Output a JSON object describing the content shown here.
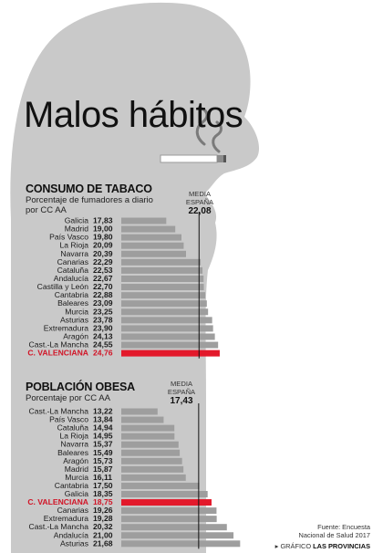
{
  "title": "Malos hábitos",
  "colors": {
    "silhouette": "#c9c9c9",
    "bar": "#9e9e9e",
    "highlight": "#e3192b",
    "highlight_text": "#d11426",
    "text": "#1a1a1a"
  },
  "icons": [
    "cigarette-icon",
    "smoke-icon",
    "head-silhouette"
  ],
  "chart_data": [
    {
      "type": "bar",
      "orientation": "horizontal",
      "title": "CONSUMO DE TABACO",
      "subtitle": "Porcentaje de fumadores a diario por CC AA",
      "reference": {
        "label": "MEDIA ESPAÑA",
        "value": 22.08,
        "value_text": "22,08"
      },
      "highlight": "C. VALENCIANA",
      "categories": [
        "Galicia",
        "Madrid",
        "País Vasco",
        "La Rioja",
        "Navarra",
        "Canarias",
        "Cataluña",
        "Andalucía",
        "Castilla y León",
        "Cantabria",
        "Baleares",
        "Murcia",
        "Asturias",
        "Extremadura",
        "Aragón",
        "Cast.-La Mancha",
        "C. VALENCIANA"
      ],
      "values": [
        17.83,
        19.0,
        19.8,
        20.09,
        20.39,
        22.29,
        22.53,
        22.67,
        22.7,
        22.88,
        23.09,
        23.25,
        23.78,
        23.9,
        24.13,
        24.55,
        24.76
      ],
      "value_labels": [
        "17,83",
        "19,00",
        "19,80",
        "20,09",
        "20,39",
        "22,29",
        "22,53",
        "22,67",
        "22,70",
        "22,88",
        "23,09",
        "23,25",
        "23,78",
        "23,90",
        "24,13",
        "24,55",
        "24,76"
      ]
    },
    {
      "type": "bar",
      "orientation": "horizontal",
      "title": "POBLACIÓN OBESA",
      "subtitle": "Porcentaje por CC AA",
      "reference": {
        "label": "MEDIA ESPAÑA",
        "value": 17.43,
        "value_text": "17,43"
      },
      "highlight": "C. VALENCIANA",
      "categories": [
        "Cast.-La Mancha",
        "País Vasco",
        "Cataluña",
        "La Rioja",
        "Navarra",
        "Baleares",
        "Aragón",
        "Madrid",
        "Murcia",
        "Cantabria",
        "Galicia",
        "C. VALENCIANA",
        "Canarias",
        "Extremadura",
        "Cast.-La Mancha",
        "Andalucía",
        "Asturias"
      ],
      "values": [
        13.22,
        13.84,
        14.94,
        14.95,
        15.37,
        15.49,
        15.73,
        15.87,
        16.11,
        17.5,
        18.35,
        18.75,
        19.26,
        19.28,
        20.32,
        21.0,
        21.68
      ],
      "value_labels": [
        "13,22",
        "13,84",
        "14,94",
        "14,95",
        "15,37",
        "15,49",
        "15,73",
        "15,87",
        "16,11",
        "17,50",
        "18,35",
        "18,75",
        "19,26",
        "19,28",
        "20,32",
        "21,00",
        "21,68"
      ]
    }
  ],
  "source": {
    "line1": "Fuente: Encuesta",
    "line2": "Nacional de Salud 2017"
  },
  "credit": {
    "prefix": "GRÁFICO",
    "name": "LAS PROVINCIAS"
  }
}
